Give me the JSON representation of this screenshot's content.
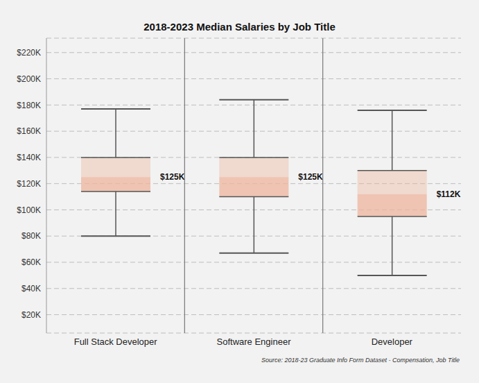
{
  "chart_data": {
    "type": "boxplot",
    "title": "2018-2023 Median Salaries by Job Title",
    "source": "Source: 2018-23 Graduate Info Form Dataset - Compensation, Job Title",
    "categories": [
      "Full Stack Developer",
      "Software Engineer",
      "Developer"
    ],
    "min": [
      80,
      67,
      50
    ],
    "q1": [
      114,
      110,
      95
    ],
    "median": [
      125,
      125,
      112
    ],
    "q3": [
      140,
      140,
      130
    ],
    "max": [
      177,
      184,
      176
    ],
    "value_labels": [
      "$125K",
      "$125K",
      "$112K"
    ],
    "data_labels": true,
    "color": "#eeb49c",
    "ylim": [
      6,
      231
    ],
    "yticks": [
      {
        "value": 20,
        "label": "$20K"
      },
      {
        "value": 40,
        "label": "$40K"
      },
      {
        "value": 60,
        "label": "$60K"
      },
      {
        "value": 80,
        "label": "$80K"
      },
      {
        "value": 100,
        "label": "$100K"
      },
      {
        "value": 120,
        "label": "$120K"
      },
      {
        "value": 140,
        "label": "$140K"
      },
      {
        "value": 160,
        "label": "$160K"
      },
      {
        "value": 180,
        "label": "$180K"
      },
      {
        "value": 200,
        "label": "$200K"
      },
      {
        "value": 220,
        "label": "$220K"
      }
    ],
    "grid": true
  }
}
